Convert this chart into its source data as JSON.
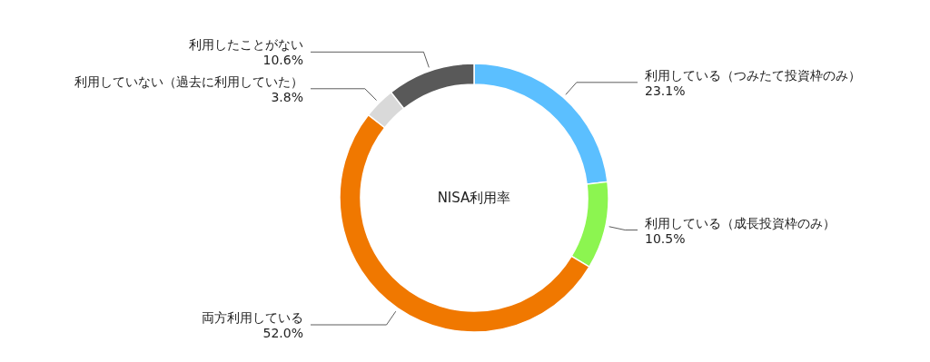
{
  "chart_data": {
    "type": "donut",
    "title": "NISA利用率",
    "categories": [
      "利用している（つみたて投資枠のみ）",
      "利用している（成長投資枠のみ）",
      "両方利用している",
      "利用していない（過去に利用していた）",
      "利用したことがない"
    ],
    "values": [
      23.1,
      10.5,
      52.0,
      3.8,
      10.6
    ],
    "value_labels": [
      "23.1%",
      "10.5%",
      "52.0%",
      "3.8%",
      "10.6%"
    ],
    "colors": [
      "#5bbfff",
      "#8cf550",
      "#f07800",
      "#d9d9d9",
      "#595959"
    ],
    "legend": false
  }
}
